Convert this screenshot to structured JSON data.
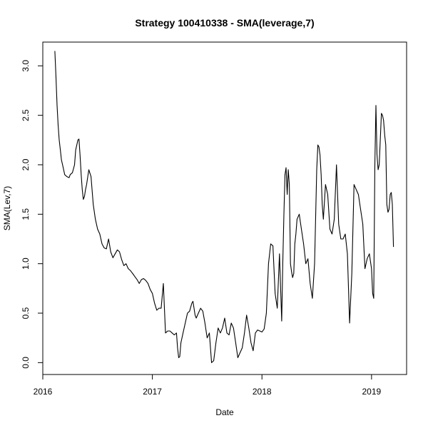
{
  "chart_data": {
    "type": "line",
    "title": "Strategy 100410338 - SMA(leverage,7)",
    "xlabel": "Date",
    "ylabel": "SMA(Lev,7)",
    "x_scale": "date",
    "xlim": [
      2016.0,
      2019.32
    ],
    "ylim": [
      -0.12,
      3.24
    ],
    "x_ticks": [
      2016,
      2017,
      2018,
      2019
    ],
    "x_tick_labels": [
      "2016",
      "2017",
      "2018",
      "2019"
    ],
    "y_ticks": [
      0.0,
      0.5,
      1.0,
      1.5,
      2.0,
      2.5,
      3.0
    ],
    "y_tick_labels": [
      "0.0",
      "0.5",
      "1.0",
      "1.5",
      "2.0",
      "2.5",
      "3.0"
    ],
    "grid": false,
    "legend": "none",
    "line_color": "#000000",
    "series": [
      {
        "x": [
          2016.11,
          2016.12,
          2016.13,
          2016.14,
          2016.15,
          2016.16,
          2016.17,
          2016.18,
          2016.19,
          2016.2,
          2016.22,
          2016.24,
          2016.25,
          2016.27,
          2016.29,
          2016.3,
          2016.32,
          2016.33,
          2016.34,
          2016.35,
          2016.36,
          2016.37,
          2016.38,
          2016.39,
          2016.4,
          2016.42,
          2016.44,
          2016.46,
          2016.48,
          2016.5,
          2016.52,
          2016.54,
          2016.56,
          2016.58,
          2016.6,
          2016.62,
          2016.64,
          2016.66,
          2016.68,
          2016.7,
          2016.72,
          2016.74,
          2016.76,
          2016.78,
          2016.8,
          2016.82,
          2016.84,
          2016.86,
          2016.88,
          2016.9,
          2016.92,
          2016.94,
          2016.96,
          2016.98,
          2017.0,
          2017.02,
          2017.04,
          2017.06,
          2017.08,
          2017.1,
          2017.12,
          2017.14,
          2017.16,
          2017.18,
          2017.2,
          2017.22,
          2017.23,
          2017.24,
          2017.25,
          2017.26,
          2017.28,
          2017.3,
          2017.32,
          2017.34,
          2017.36,
          2017.37,
          2017.38,
          2017.39,
          2017.4,
          2017.42,
          2017.44,
          2017.46,
          2017.48,
          2017.5,
          2017.52,
          2017.54,
          2017.56,
          2017.58,
          2017.6,
          2017.62,
          2017.64,
          2017.66,
          2017.68,
          2017.7,
          2017.72,
          2017.74,
          2017.76,
          2017.78,
          2017.8,
          2017.82,
          2017.84,
          2017.86,
          2017.88,
          2017.9,
          2017.92,
          2017.94,
          2017.96,
          2017.98,
          2018.0,
          2018.02,
          2018.04,
          2018.06,
          2018.08,
          2018.1,
          2018.12,
          2018.14,
          2018.16,
          2018.18,
          2018.19,
          2018.2,
          2018.21,
          2018.22,
          2018.23,
          2018.24,
          2018.25,
          2018.26,
          2018.27,
          2018.28,
          2018.29,
          2018.3,
          2018.31,
          2018.32,
          2018.34,
          2018.36,
          2018.38,
          2018.4,
          2018.42,
          2018.44,
          2018.46,
          2018.48,
          2018.5,
          2018.51,
          2018.52,
          2018.53,
          2018.54,
          2018.55,
          2018.56,
          2018.58,
          2018.6,
          2018.62,
          2018.64,
          2018.66,
          2018.68,
          2018.7,
          2018.72,
          2018.74,
          2018.76,
          2018.78,
          2018.8,
          2018.82,
          2018.84,
          2018.86,
          2018.88,
          2018.9,
          2018.92,
          2018.94,
          2018.96,
          2018.98,
          2019.0,
          2019.01,
          2019.02,
          2019.03,
          2019.04,
          2019.05,
          2019.06,
          2019.07,
          2019.08,
          2019.09,
          2019.1,
          2019.11,
          2019.12,
          2019.13,
          2019.14,
          2019.15,
          2019.16,
          2019.17,
          2019.18,
          2019.19,
          2019.2
        ],
        "y": [
          3.15,
          2.9,
          2.6,
          2.4,
          2.25,
          2.15,
          2.05,
          2.0,
          1.95,
          1.9,
          1.88,
          1.87,
          1.9,
          1.92,
          2.0,
          2.15,
          2.25,
          2.26,
          2.1,
          1.9,
          1.75,
          1.65,
          1.68,
          1.75,
          1.8,
          1.95,
          1.88,
          1.6,
          1.45,
          1.35,
          1.3,
          1.2,
          1.16,
          1.15,
          1.25,
          1.12,
          1.06,
          1.1,
          1.14,
          1.12,
          1.04,
          0.98,
          1.0,
          0.95,
          0.93,
          0.9,
          0.87,
          0.84,
          0.8,
          0.84,
          0.85,
          0.83,
          0.8,
          0.74,
          0.7,
          0.6,
          0.53,
          0.55,
          0.55,
          0.8,
          0.3,
          0.32,
          0.32,
          0.3,
          0.28,
          0.3,
          0.15,
          0.05,
          0.06,
          0.2,
          0.3,
          0.4,
          0.5,
          0.52,
          0.6,
          0.62,
          0.55,
          0.48,
          0.45,
          0.5,
          0.55,
          0.52,
          0.4,
          0.25,
          0.3,
          0.0,
          0.02,
          0.2,
          0.35,
          0.3,
          0.35,
          0.45,
          0.3,
          0.28,
          0.4,
          0.35,
          0.2,
          0.05,
          0.1,
          0.15,
          0.3,
          0.48,
          0.35,
          0.2,
          0.12,
          0.3,
          0.33,
          0.32,
          0.31,
          0.34,
          0.5,
          1.0,
          1.2,
          1.18,
          0.7,
          0.55,
          1.1,
          0.42,
          1.0,
          1.5,
          1.9,
          1.97,
          1.7,
          1.95,
          1.8,
          1.0,
          0.92,
          0.86,
          0.9,
          1.2,
          1.3,
          1.45,
          1.5,
          1.35,
          1.2,
          1.0,
          1.05,
          0.8,
          0.65,
          1.0,
          1.95,
          2.2,
          2.18,
          2.1,
          1.9,
          1.6,
          1.45,
          1.8,
          1.7,
          1.35,
          1.3,
          1.45,
          2.0,
          1.4,
          1.25,
          1.25,
          1.3,
          1.1,
          0.4,
          0.9,
          1.8,
          1.75,
          1.7,
          1.55,
          1.4,
          0.95,
          1.05,
          1.1,
          0.95,
          0.7,
          0.65,
          2.0,
          2.6,
          2.1,
          1.95,
          2.0,
          2.25,
          2.52,
          2.5,
          2.45,
          2.3,
          2.2,
          1.6,
          1.52,
          1.55,
          1.7,
          1.72,
          1.6,
          1.17
        ]
      }
    ]
  }
}
